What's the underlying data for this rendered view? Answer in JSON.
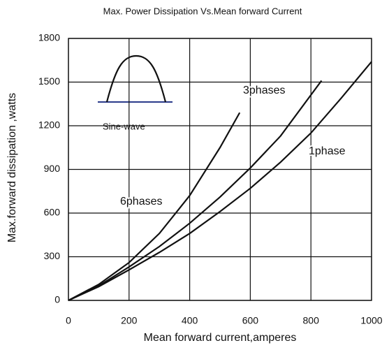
{
  "chart_data": {
    "type": "line",
    "title": "Max. Power Dissipation Vs.Mean forward Current",
    "x_label": "Mean forward current,amperes",
    "y_label": "Max.forward dissipation ,watts",
    "inset_label": "Sine-wave",
    "xlim": [
      0,
      1000
    ],
    "xticks": [
      0,
      200,
      400,
      600,
      800,
      1000
    ],
    "ylim": [
      0,
      1800
    ],
    "yticks": [
      0,
      300,
      600,
      900,
      1200,
      1500,
      1800
    ],
    "grid": true,
    "series": [
      {
        "name": "6phases",
        "color": "#111111",
        "x": [
          0,
          100,
          200,
          300,
          400,
          500,
          565
        ],
        "values": [
          0,
          110,
          260,
          460,
          720,
          1050,
          1290
        ]
      },
      {
        "name": "3phases",
        "color": "#111111",
        "x": [
          0,
          100,
          200,
          300,
          400,
          500,
          600,
          700,
          835
        ],
        "values": [
          0,
          100,
          230,
          370,
          530,
          710,
          910,
          1130,
          1510
        ]
      },
      {
        "name": "1phase",
        "color": "#111111",
        "x": [
          0,
          100,
          200,
          300,
          400,
          500,
          600,
          700,
          800,
          900,
          1000
        ],
        "values": [
          0,
          95,
          210,
          330,
          460,
          610,
          770,
          950,
          1150,
          1390,
          1640
        ]
      }
    ]
  }
}
